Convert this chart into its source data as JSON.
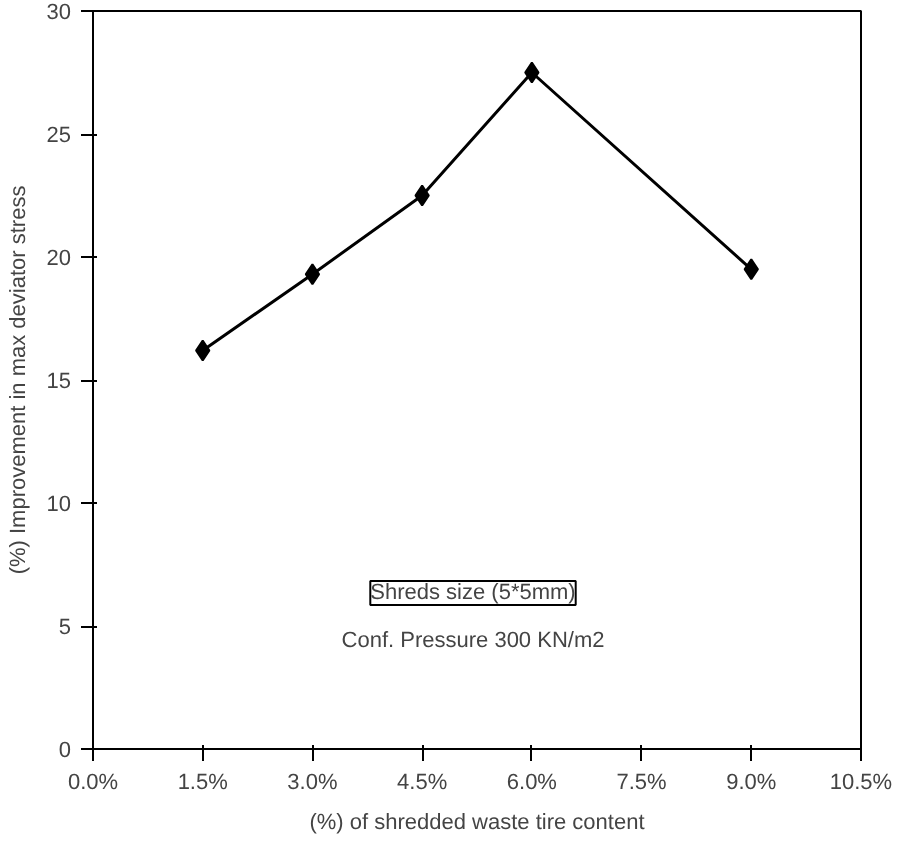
{
  "chart_data": {
    "type": "line",
    "xlabel": "(%) of shredded waste tire content",
    "ylabel": "(%) Improvement in max deviator stress",
    "x": [
      1.5,
      3.0,
      4.5,
      6.0,
      9.0
    ],
    "series": [
      {
        "color": "#000000",
        "values": [
          16.2,
          19.3,
          22.5,
          27.5,
          19.5
        ]
      }
    ],
    "xlim": [
      0,
      10.5
    ],
    "xticks": [
      {
        "value": 0,
        "label": "0.0%"
      },
      {
        "value": 1.5,
        "label": "1.5%"
      },
      {
        "value": 3.0,
        "label": "3.0%"
      },
      {
        "value": 4.5,
        "label": "4.5%"
      },
      {
        "value": 6.0,
        "label": "6.0%"
      },
      {
        "value": 7.5,
        "label": "7.5%"
      },
      {
        "value": 9.0,
        "label": "9.0%"
      },
      {
        "value": 10.5,
        "label": "10.5%"
      }
    ],
    "ylim": [
      0,
      30
    ],
    "yticks": [
      0,
      5,
      10,
      15,
      20,
      25,
      30
    ],
    "annotations": [
      "Shreds size (5*5mm)",
      "Conf. Pressure 300 KN/m2"
    ],
    "grid": false,
    "marker": "diamond",
    "line_style": "solid"
  }
}
